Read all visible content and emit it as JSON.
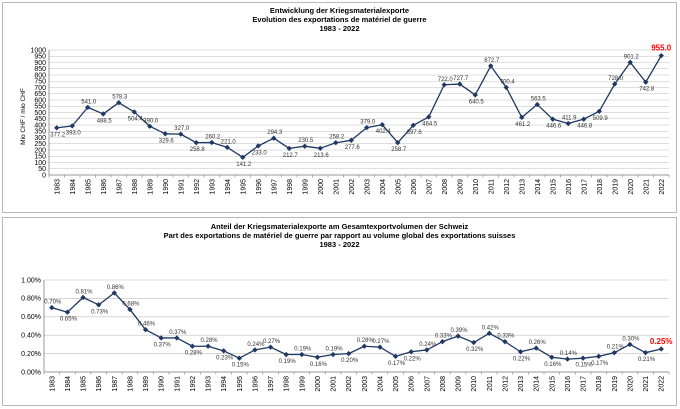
{
  "charts": [
    {
      "id": "chart1",
      "title_lines": [
        "Entwicklung der Kriegsmaterialexporte",
        "Evolution des exportations de matériel de guerre",
        "1983 - 2022"
      ]
    },
    {
      "id": "chart2",
      "title_lines": [
        "Anteil der Kriegsmaterialexporte am Gesamtexportvolumen der Schweiz",
        "Part des exportations de matériel de guerre par rapport au volume global des exportations suisses",
        "1983 - 2022"
      ]
    }
  ],
  "colors": {
    "line": "#1f3864",
    "marker": "#1f3864",
    "highlight": "#ff0000",
    "grid": "#bfbfbf",
    "axis": "#808080"
  },
  "chart_data": [
    {
      "type": "line",
      "title": "Entwicklung der Kriegsmaterialexporte / Evolution des exportations de matériel de guerre 1983 - 2022",
      "ylabel": "Mio CHF / mio CHF",
      "xlabel": "",
      "ylim": [
        0,
        1000
      ],
      "yticks": [
        0,
        50,
        100,
        150,
        200,
        250,
        300,
        350,
        400,
        450,
        500,
        550,
        600,
        650,
        700,
        750,
        800,
        850,
        900,
        950,
        1000
      ],
      "grid": "horizontal",
      "x": [
        "1983",
        "1984",
        "1985",
        "1986",
        "1987",
        "1988",
        "1989",
        "1990",
        "1991",
        "1992",
        "1993",
        "1994",
        "1995",
        "1996",
        "1997",
        "1998",
        "1999",
        "2000",
        "2001",
        "2002",
        "2003",
        "2004",
        "2005",
        "2006",
        "2007",
        "2008",
        "2009",
        "2010",
        "2011",
        "2012",
        "2013",
        "2014",
        "2015",
        "2016",
        "2017",
        "2018",
        "2019",
        "2020",
        "2021",
        "2022"
      ],
      "values": [
        377.2,
        393.0,
        541.0,
        488.5,
        578.3,
        504.4,
        390.0,
        329.6,
        327.0,
        258.8,
        260.2,
        221.0,
        141.2,
        233.0,
        294.3,
        212.7,
        230.5,
        213.6,
        258.2,
        277.6,
        379.0,
        402.4,
        258.7,
        397.6,
        464.5,
        722.0,
        727.7,
        640.5,
        872.7,
        700.4,
        461.2,
        563.5,
        446.6,
        411.9,
        446.8,
        509.9,
        728.0,
        901.2,
        742.8,
        955.0
      ],
      "labels": [
        "377.2",
        "393.0",
        "541.0",
        "488.5",
        "578.3",
        "504.4",
        "390.0",
        "329.6",
        "327.0",
        "258.8",
        "260.2",
        "221.0",
        "141.2",
        "233.0",
        "294.3",
        "212.7",
        "230.5",
        "213.6",
        "258.2",
        "277.6",
        "379.0",
        "402.4",
        "258.7",
        "397.6",
        "464.5",
        "722.0",
        "727.7",
        "640.5",
        "872.7",
        "700.4",
        "461.2",
        "563.5",
        "446.6",
        "411.9",
        "446.8",
        "509.9",
        "728.0",
        "901.2",
        "742.8",
        "955.0"
      ],
      "label_pos": [
        "b",
        "b",
        "a",
        "b",
        "a",
        "b",
        "a",
        "b",
        "a",
        "b",
        "a",
        "a",
        "b",
        "b",
        "a",
        "b",
        "a",
        "b",
        "a",
        "b",
        "a",
        "b",
        "b",
        "b",
        "b",
        "a",
        "a",
        "b",
        "a",
        "a",
        "b",
        "a",
        "b",
        "a",
        "b",
        "b",
        "a",
        "a",
        "b",
        "a"
      ],
      "highlight_last": true
    },
    {
      "type": "line",
      "title": "Anteil der Kriegsmaterialexporte am Gesamtexportvolumen der Schweiz / Part des exportations de matériel de guerre par rapport au volume global des exportations suisses 1983 - 2022",
      "ylabel": "",
      "xlabel": "",
      "ylim": [
        0,
        1.0
      ],
      "yticks": [
        0,
        0.2,
        0.4,
        0.6,
        0.8,
        1.0
      ],
      "ytick_labels": [
        "0.00%",
        "0.20%",
        "0.40%",
        "0.60%",
        "0.80%",
        "1.00%"
      ],
      "grid": "horizontal",
      "x": [
        "1983",
        "1984",
        "1985",
        "1986",
        "1987",
        "1988",
        "1989",
        "1990",
        "1991",
        "1992",
        "1993",
        "1994",
        "1995",
        "1996",
        "1997",
        "1998",
        "1999",
        "2000",
        "2001",
        "2002",
        "2003",
        "2004",
        "2005",
        "2006",
        "2007",
        "2008",
        "2009",
        "2010",
        "2011",
        "2012",
        "2013",
        "2014",
        "2015",
        "2016",
        "2017",
        "2018",
        "2019",
        "2020",
        "2021",
        "2022"
      ],
      "values": [
        0.7,
        0.65,
        0.81,
        0.73,
        0.86,
        0.68,
        0.46,
        0.37,
        0.37,
        0.28,
        0.28,
        0.23,
        0.15,
        0.24,
        0.27,
        0.19,
        0.19,
        0.16,
        0.19,
        0.2,
        0.28,
        0.27,
        0.17,
        0.22,
        0.24,
        0.33,
        0.39,
        0.32,
        0.42,
        0.33,
        0.22,
        0.26,
        0.16,
        0.14,
        0.15,
        0.17,
        0.21,
        0.3,
        0.21,
        0.25
      ],
      "labels": [
        "0.70%",
        "0.65%",
        "0.81%",
        "0.73%",
        "0.86%",
        "0.68%",
        "0.46%",
        "0.37%",
        "0.37%",
        "0.28%",
        "0.28%",
        "0.23%",
        "0.15%",
        "0.24%",
        "0.27%",
        "0.19%",
        "0.19%",
        "0.16%",
        "0.19%",
        "0.20%",
        "0.28%",
        "0.27%",
        "0.17%",
        "0.22%",
        "0.24%",
        "0.33%",
        "0.39%",
        "0.32%",
        "0.42%",
        "0.33%",
        "0.22%",
        "0.26%",
        "0.16%",
        "0.14%",
        "0.15%",
        "0.17%",
        "0.21%",
        "0.30%",
        "0.21%",
        "0.25%"
      ],
      "label_pos": [
        "a",
        "b",
        "a",
        "b",
        "a",
        "a",
        "a",
        "b",
        "a",
        "b",
        "a",
        "b",
        "b",
        "a",
        "a",
        "b",
        "a",
        "b",
        "a",
        "b",
        "a",
        "a",
        "b",
        "b",
        "a",
        "a",
        "a",
        "b",
        "a",
        "a",
        "b",
        "a",
        "b",
        "a",
        "b",
        "b",
        "a",
        "a",
        "b",
        "a"
      ],
      "highlight_last": true
    }
  ]
}
